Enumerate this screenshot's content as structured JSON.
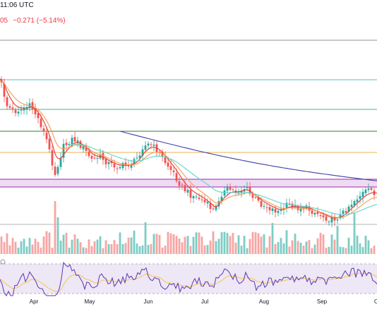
{
  "header": {
    "time_text": "11:06 UTC",
    "price_fragment": "05",
    "change_text": "−0.271 (−5.14%)"
  },
  "colors": {
    "up_candle": "#26a69a",
    "down_candle": "#ef5350",
    "vol_up": "#7dcdc4",
    "vol_down": "#f7a5a3",
    "ema_red": "#e53935",
    "ema_orange": "#f59c4e",
    "ema_cyan": "#5ed3d3",
    "ema_navy": "#3f3fa8",
    "zone_fill": "#e1bee7",
    "zone_edge": "#9c27b0",
    "rsi_line": "#5e35b1",
    "rsi_ma": "#f2c94c",
    "rsi_band": "#ede7f6",
    "level_lines": [
      "#909090",
      "#5bc0c6",
      "#4caf8e",
      "#2e7d32",
      "#e8b04c"
    ]
  },
  "chart_data": {
    "type": "candlestick",
    "x_labels": [
      "Apr",
      "May",
      "Jun",
      "Jul",
      "Aug",
      "Sep"
    ],
    "last_label_partial": "O",
    "price_overlays": [
      "EMA (red)",
      "EMA (orange)",
      "EMA (cyan)",
      "EMA (navy)"
    ],
    "horizontal_levels": 5,
    "highlighted_zone": true,
    "indicator": "RSI with moving average",
    "rsi_levels": [
      70,
      30
    ],
    "grid": false
  }
}
